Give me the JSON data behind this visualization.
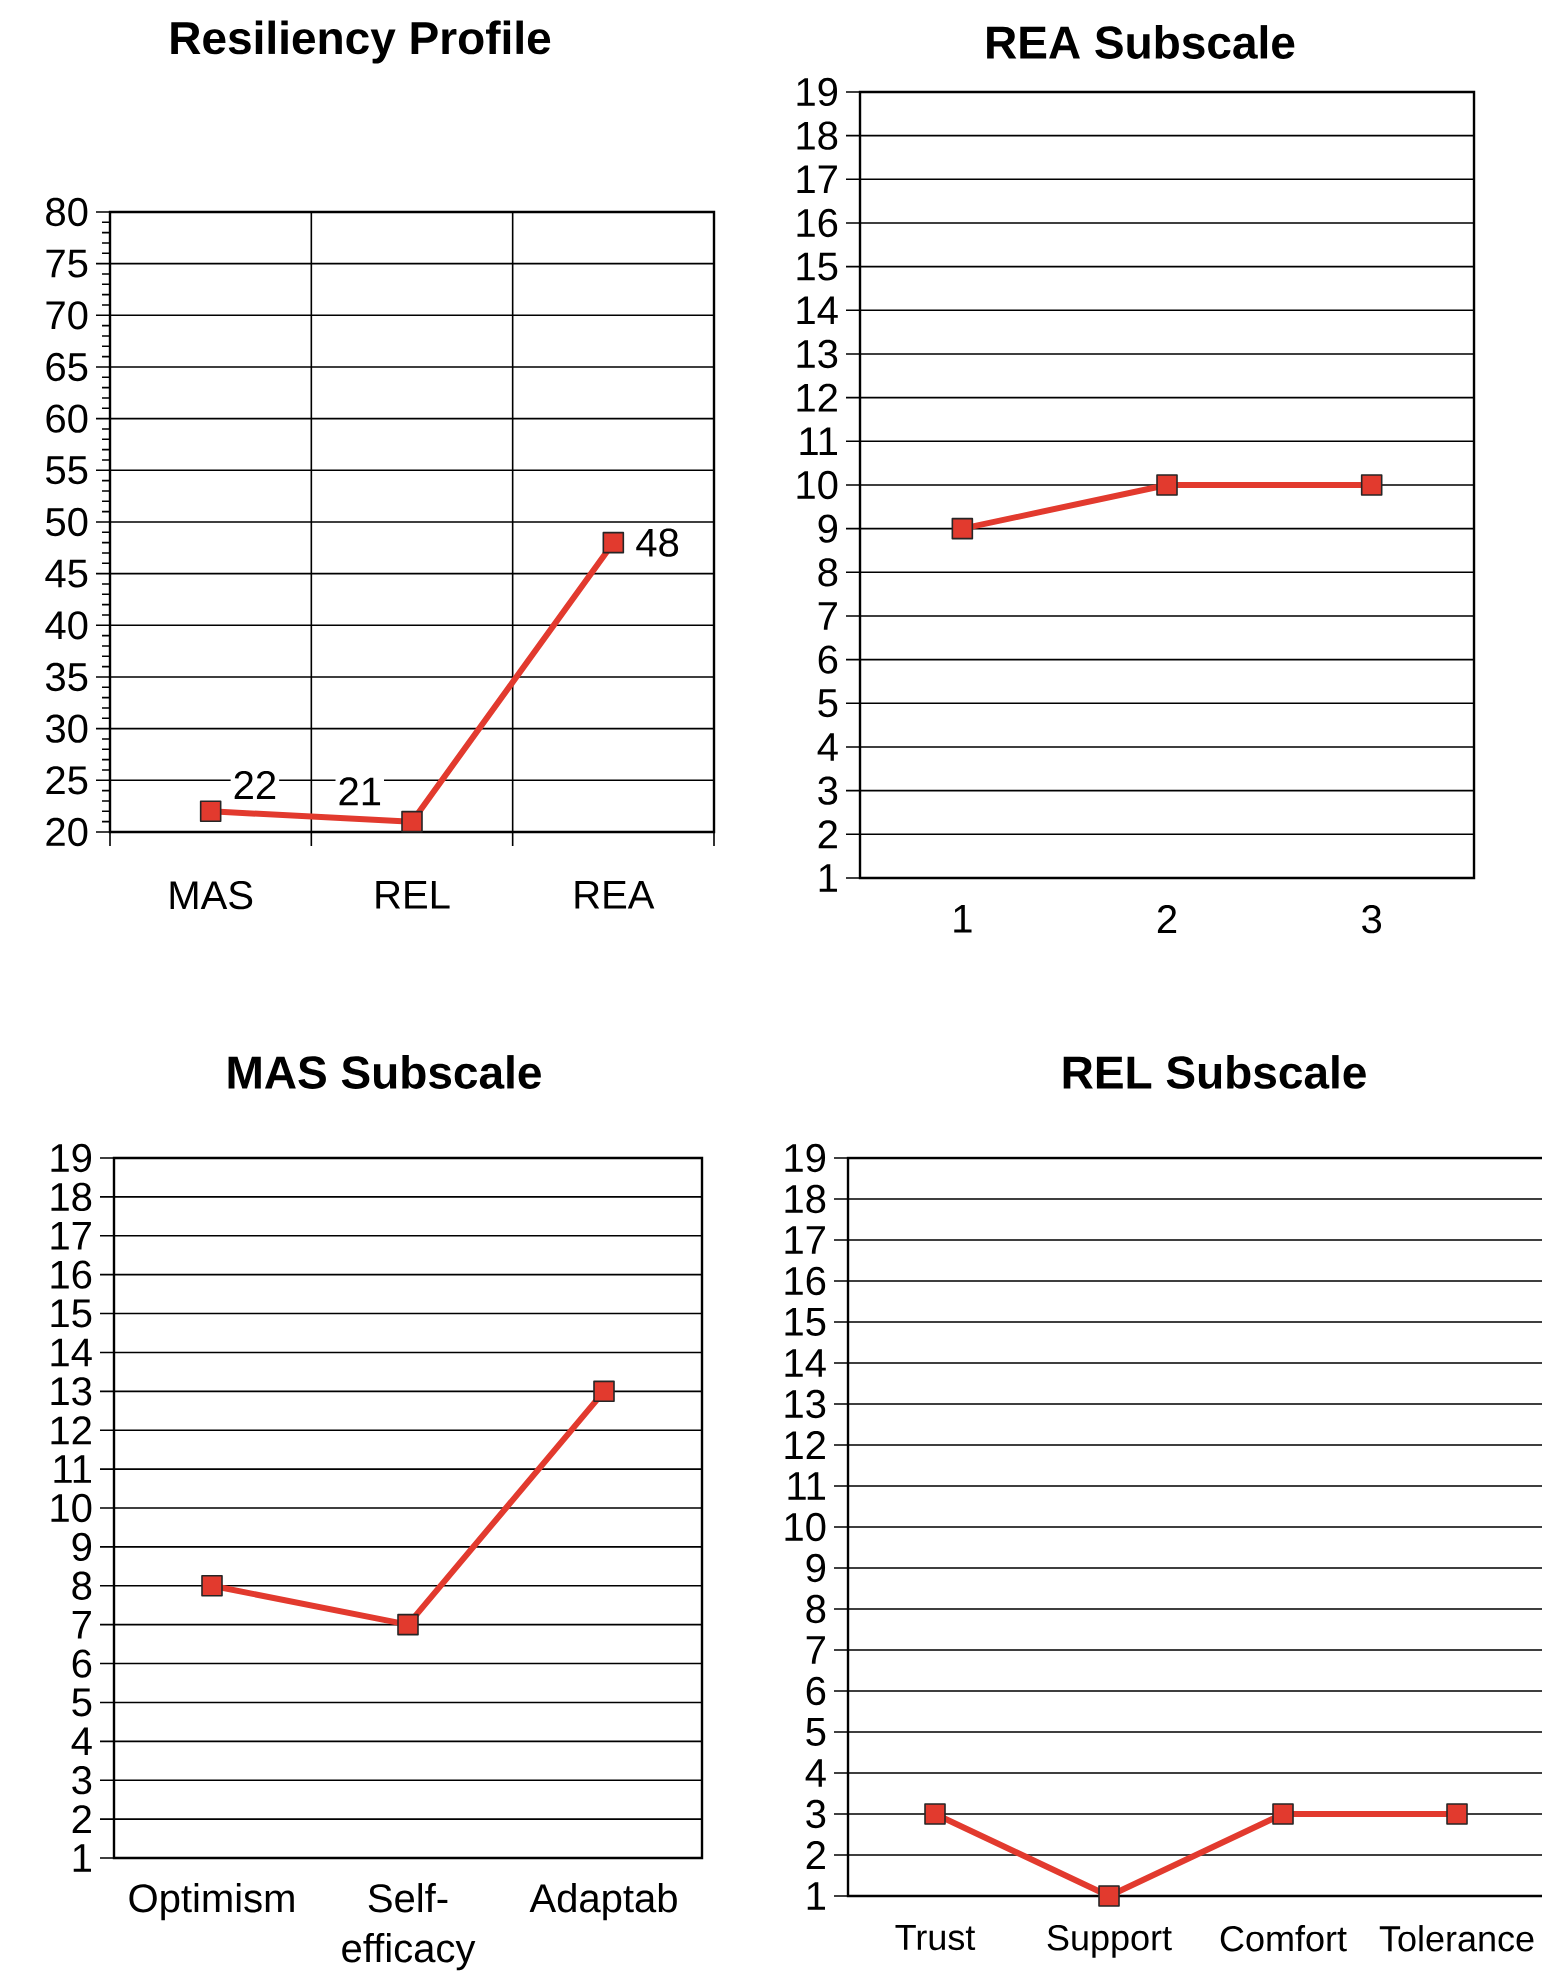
{
  "chart_data": [
    {
      "type": "line",
      "title": "Resiliency Profile",
      "categories": [
        "MAS",
        "REL",
        "REA"
      ],
      "values": [
        22,
        21,
        48
      ],
      "color": "#e23a2e",
      "ylim": [
        20,
        80
      ],
      "yticks": [
        20,
        25,
        30,
        35,
        40,
        45,
        50,
        55,
        60,
        65,
        70,
        75,
        80
      ],
      "grid": true,
      "marker": "square",
      "data_labels": true
    },
    {
      "type": "line",
      "title": "REA Subscale",
      "categories": [
        "1",
        "2",
        "3"
      ],
      "values": [
        9,
        10,
        10
      ],
      "color": "#e23a2e",
      "ylim": [
        1,
        19
      ],
      "yticks": [
        1,
        2,
        3,
        4,
        5,
        6,
        7,
        8,
        9,
        10,
        11,
        12,
        13,
        14,
        15,
        16,
        17,
        18,
        19
      ],
      "grid": "y",
      "marker": "square"
    },
    {
      "type": "line",
      "title": "MAS Subscale",
      "categories": [
        "Optimism",
        "Self-efficacy",
        "Adaptab"
      ],
      "values": [
        8,
        7,
        13
      ],
      "color": "#e23a2e",
      "ylim": [
        1,
        19
      ],
      "yticks": [
        1,
        2,
        3,
        4,
        5,
        6,
        7,
        8,
        9,
        10,
        11,
        12,
        13,
        14,
        15,
        16,
        17,
        18,
        19
      ],
      "grid": "y",
      "marker": "square"
    },
    {
      "type": "line",
      "title": "REL Subscale",
      "categories": [
        "Trust",
        "Support",
        "Comfort",
        "Tolerance"
      ],
      "values": [
        3,
        1,
        3,
        3
      ],
      "color": "#e23a2e",
      "ylim": [
        1,
        19
      ],
      "yticks": [
        1,
        2,
        3,
        4,
        5,
        6,
        7,
        8,
        9,
        10,
        11,
        12,
        13,
        14,
        15,
        16,
        17,
        18,
        19
      ],
      "grid": "y",
      "marker": "square"
    }
  ]
}
